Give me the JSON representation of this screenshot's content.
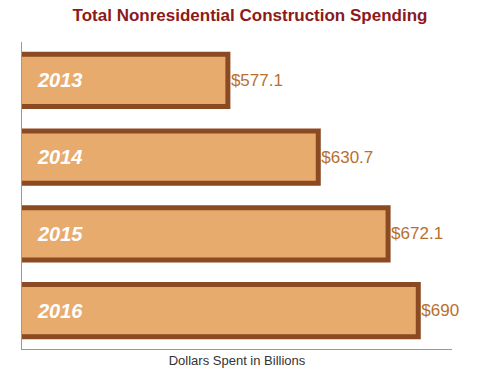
{
  "chart_data": {
    "type": "bar",
    "orientation": "horizontal",
    "title": "Total Nonresidential Construction Spending",
    "xlabel": "Dollars Spent in Billions",
    "categories": [
      "2013",
      "2014",
      "2015",
      "2016"
    ],
    "values": [
      577.1,
      630.7,
      672.1,
      690
    ],
    "value_labels": [
      "$577.1",
      "$630.7",
      "$672.1",
      "$690"
    ],
    "color": "#e8ab6e",
    "xlim": [
      455,
      710
    ],
    "xticks": [],
    "data_labels": true,
    "tick_labels": false,
    "grid": false
  }
}
